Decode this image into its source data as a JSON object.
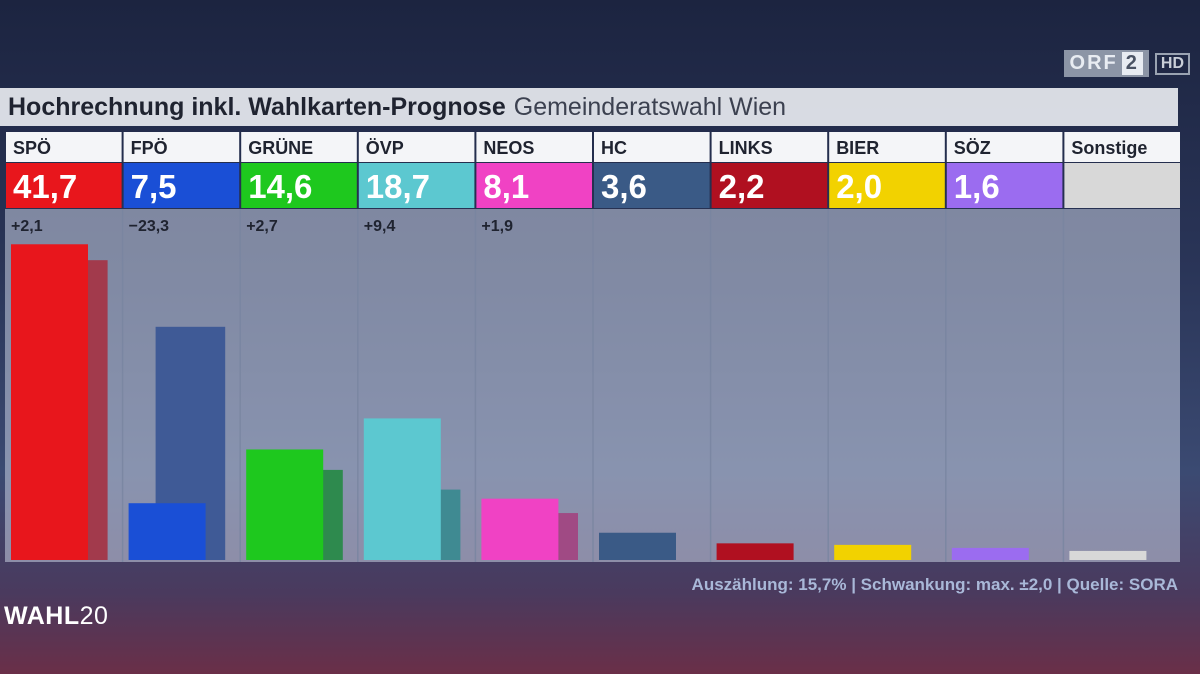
{
  "broadcaster": {
    "name": "ORF",
    "channel": "2",
    "quality": "HD"
  },
  "header": {
    "title": "Hochrechnung inkl. Wahlkarten-Prognose",
    "subtitle": "Gemeinderatswahl Wien"
  },
  "chart_data": {
    "type": "bar",
    "title": "Hochrechnung inkl. Wahlkarten-Prognose",
    "subtitle": "Gemeinderatswahl Wien",
    "categories": [
      "SPÖ",
      "FPÖ",
      "GRÜNE",
      "ÖVP",
      "NEOS",
      "HC",
      "LINKS",
      "BIER",
      "SÖZ",
      "Sonstige"
    ],
    "value_labels": [
      "41,7",
      "7,5",
      "14,6",
      "18,7",
      "8,1",
      "3,6",
      "2,2",
      "2,0",
      "1,6",
      ""
    ],
    "change_labels": [
      "+2,1",
      "−23,3",
      "+2,7",
      "+9,4",
      "+1,9",
      "",
      "",
      "",
      "",
      ""
    ],
    "series": [
      {
        "values": [
          41.7,
          7.5,
          14.6,
          18.7,
          8.1,
          3.6,
          2.2,
          2.0,
          1.6,
          1.2
        ]
      },
      {
        "values": [
          39.6,
          30.8,
          11.9,
          9.3,
          6.2,
          null,
          null,
          null,
          null,
          null
        ]
      }
    ],
    "colors": [
      "#e8161c",
      "#1a4fd6",
      "#1ec81e",
      "#5cc8d0",
      "#f042c4",
      "#3a5a86",
      "#b01020",
      "#f2d200",
      "#9b6cf0",
      "#d8d8d8"
    ],
    "previous_colors": [
      "#a23a4c",
      "#3f5a96",
      "#2e8a4e",
      "#3f8a92",
      "#a04a84",
      null,
      null,
      null,
      null,
      null
    ],
    "ylim": [
      0,
      42
    ]
  },
  "footer": {
    "text": "Auszählung: 15,7% | Schwankung: max. ±2,0 | Quelle: SORA"
  },
  "show_logo": {
    "text": "WAHL",
    "year": "20"
  }
}
